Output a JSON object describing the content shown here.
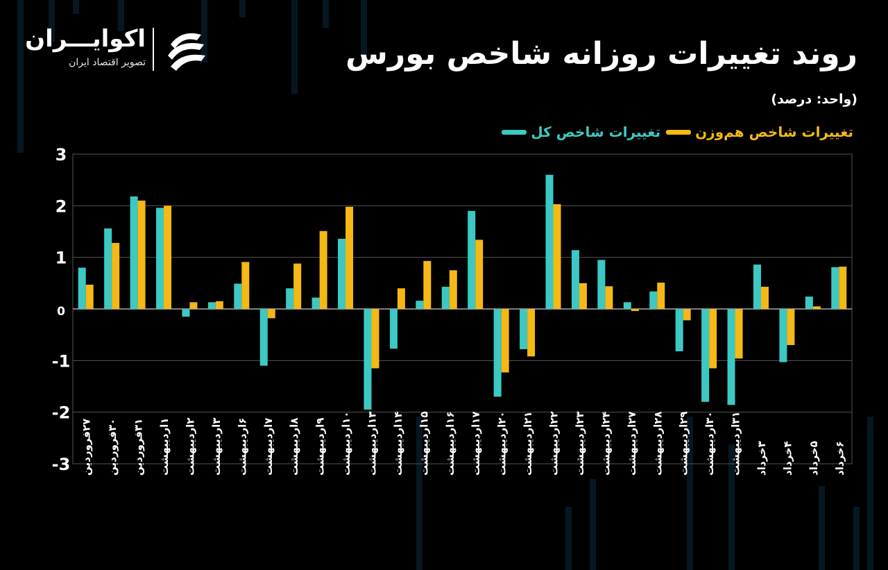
{
  "header": {
    "title": "روند تغییرات روزانه شاخص بورس",
    "unit": "(واحد: درصد)"
  },
  "brand": {
    "name": "اکوایـــران",
    "tagline": "تصویر اقتصاد ایران",
    "logo_icon": "ekoiran-logo-icon"
  },
  "legend": {
    "items": [
      {
        "label": "تغییرات شاخص کل",
        "color": "#3cc9c4"
      },
      {
        "label": "تغییرات شاخص هم‌وزن",
        "color": "#f5b814"
      }
    ]
  },
  "colors": {
    "background": "#000000",
    "teal": "#3cc9c4",
    "gold": "#f5b814",
    "grid": "#555555",
    "text": "#ffffff"
  },
  "chart_data": {
    "type": "bar",
    "ylim": [
      -3,
      3
    ],
    "yticks": [
      3,
      2,
      1,
      0,
      -1,
      -2,
      -3
    ],
    "ytick_labels": [
      "3",
      "2",
      "1",
      "0",
      "-1",
      "-2",
      "-3"
    ],
    "grid": true,
    "legend_position": "top-right",
    "categories": [
      "۲۷فروردین",
      "۳۰فروردین",
      "۳۱فروردین",
      "۱اردیبهشت",
      "۲اردیبهشت",
      "۳اردیبهشت",
      "۶اردیبهشت",
      "۷اردیبهشت",
      "۸اردیبهشت",
      "۹اردیبهشت",
      "۱۰اردیبهشت",
      "۱۳اردیبهشت",
      "۱۴اردیبهشت",
      "۱۵اردیبهشت",
      "۱۶اردیبهشت",
      "۱۷اردیبهشت",
      "۲۰اردیبهشت",
      "۲۱اردیبهشت",
      "۲۲اردیبهشت",
      "۲۳اردیبهشت",
      "۲۴اردیبهشت",
      "۲۷اردیبهشت",
      "۲۸اردیبهشت",
      "۲۹اردیبهشت",
      "۳۰اردیبهشت",
      "۳۱اردیبهشت",
      "۳خرداد",
      "۴خرداد",
      "۵خرداد",
      "۶خرداد"
    ],
    "series": [
      {
        "name": "تغییرات شاخص کل",
        "color": "#3cc9c4",
        "values": [
          0.8,
          1.56,
          2.18,
          1.96,
          -0.15,
          0.13,
          0.49,
          -1.1,
          0.4,
          0.22,
          1.36,
          -1.95,
          -0.77,
          0.16,
          0.43,
          1.9,
          -1.7,
          -0.78,
          2.6,
          1.14,
          0.95,
          0.13,
          0.34,
          -0.82,
          -1.8,
          -1.86,
          0.86,
          -1.03,
          0.24,
          0.81
        ]
      },
      {
        "name": "تغییرات شاخص هم‌وزن",
        "color": "#f5b814",
        "values": [
          0.47,
          1.28,
          2.1,
          2.0,
          0.13,
          0.15,
          0.91,
          -0.18,
          0.88,
          1.51,
          1.98,
          -1.15,
          0.4,
          0.93,
          0.75,
          1.34,
          -1.23,
          -0.92,
          2.03,
          0.5,
          0.44,
          -0.04,
          0.51,
          -0.22,
          -1.15,
          -0.96,
          0.43,
          -0.7,
          0.05,
          0.82
        ]
      }
    ]
  }
}
